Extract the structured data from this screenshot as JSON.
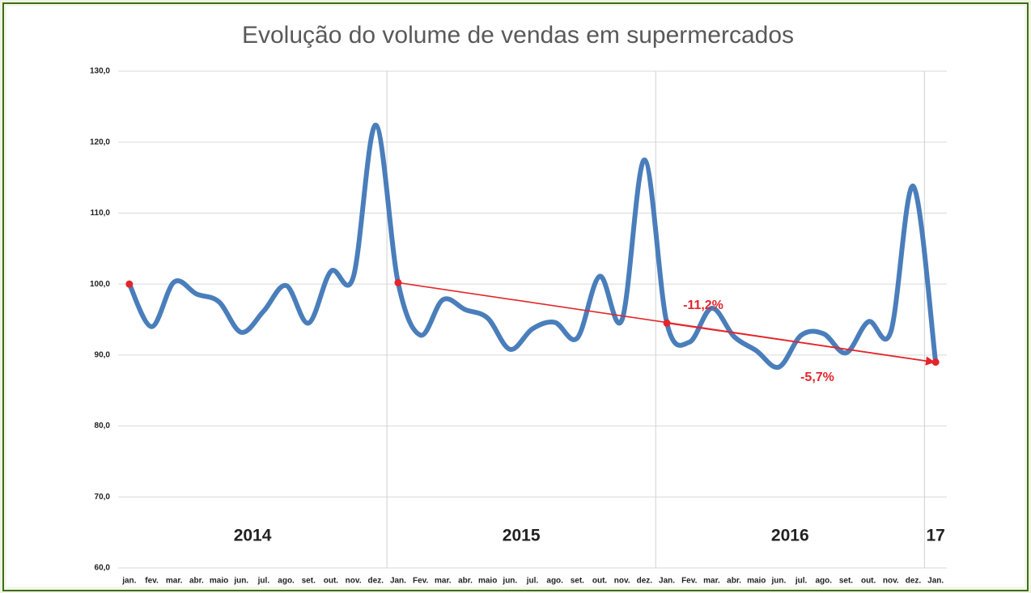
{
  "chart_data": {
    "type": "line",
    "title": "Evolução do volume de vendas em supermercados",
    "categories": [
      "jan.",
      "fev.",
      "mar.",
      "abr.",
      "maio",
      "jun.",
      "jul.",
      "ago.",
      "set.",
      "out.",
      "nov.",
      "dez.",
      "Jan.",
      "Fev.",
      "mar.",
      "abr.",
      "maio",
      "jun.",
      "jul.",
      "ago.",
      "set.",
      "out.",
      "nov.",
      "dez.",
      "Jan.",
      "Fev.",
      "mar.",
      "abr.",
      "maio",
      "jun.",
      "jul.",
      "ago.",
      "set.",
      "out.",
      "nov.",
      "dez.",
      "Jan."
    ],
    "series": [
      {
        "name": "Volume de vendas",
        "color": "#4a7ebb",
        "values": [
          100.0,
          94.0,
          100.3,
          98.6,
          97.5,
          93.2,
          96.2,
          99.8,
          94.5,
          101.8,
          101.0,
          122.4,
          100.2,
          92.8,
          97.8,
          96.4,
          95.2,
          90.8,
          93.7,
          94.6,
          92.4,
          101.1,
          95.0,
          117.5,
          94.5,
          91.8,
          96.6,
          92.6,
          90.6,
          88.3,
          92.8,
          93.0,
          90.3,
          94.7,
          93.3,
          113.8,
          89.0
        ]
      }
    ],
    "years": [
      "2014",
      "2015",
      "2016",
      "17"
    ],
    "annotations": [
      "-11,2%",
      "-5,7%"
    ],
    "annotation_color": "#e3262b",
    "ylim": [
      60,
      130
    ],
    "yticks": [
      {
        "value": 60,
        "label": "60,0"
      },
      {
        "value": 70,
        "label": "70,0"
      },
      {
        "value": 80,
        "label": "80,0"
      },
      {
        "value": 90,
        "label": "90,0"
      },
      {
        "value": 100,
        "label": "100,0"
      },
      {
        "value": 110,
        "label": "110,0"
      },
      {
        "value": 120,
        "label": "120,0"
      },
      {
        "value": 130,
        "label": "130,0"
      }
    ],
    "grid": true
  }
}
